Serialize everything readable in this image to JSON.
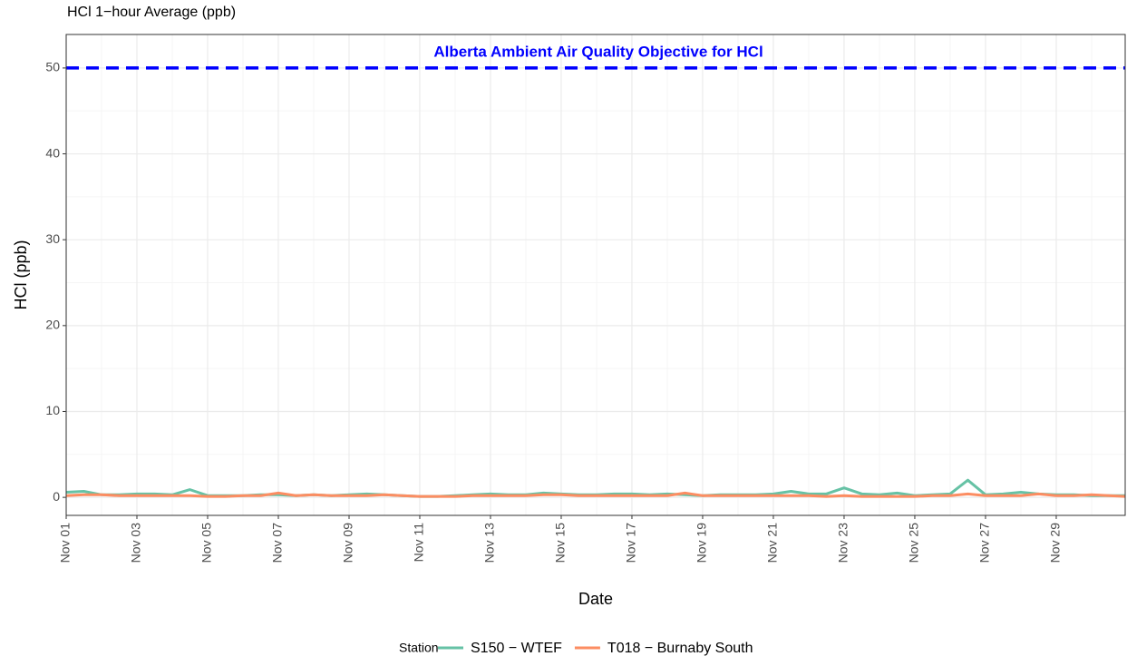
{
  "chart_data": {
    "type": "line",
    "title": "HCl 1−hour Average (ppb)",
    "x_label": "Date",
    "y_label": "HCl (ppb)",
    "legend_title": "Station",
    "legend_position": "bottom",
    "grid": true,
    "xlim": [
      1,
      30.95
    ],
    "ylim": [
      -2.1,
      53.9
    ],
    "xticks": [
      {
        "value": 1,
        "label": "Nov 01"
      },
      {
        "value": 3,
        "label": "Nov 03"
      },
      {
        "value": 5,
        "label": "Nov 05"
      },
      {
        "value": 7,
        "label": "Nov 07"
      },
      {
        "value": 9,
        "label": "Nov 09"
      },
      {
        "value": 11,
        "label": "Nov 11"
      },
      {
        "value": 13,
        "label": "Nov 13"
      },
      {
        "value": 15,
        "label": "Nov 15"
      },
      {
        "value": 17,
        "label": "Nov 17"
      },
      {
        "value": 19,
        "label": "Nov 19"
      },
      {
        "value": 21,
        "label": "Nov 21"
      },
      {
        "value": 23,
        "label": "Nov 23"
      },
      {
        "value": 25,
        "label": "Nov 25"
      },
      {
        "value": 27,
        "label": "Nov 27"
      },
      {
        "value": 29,
        "label": "Nov 29"
      }
    ],
    "yticks": [
      0,
      10,
      20,
      30,
      40,
      50
    ],
    "reference_line": {
      "value": 50,
      "label": "Alberta Ambient Air Quality Objective for HCl",
      "color": "#0000ff"
    },
    "x": [
      1,
      1.5,
      2,
      2.5,
      3,
      3.5,
      4,
      4.5,
      5,
      5.5,
      6,
      6.5,
      7,
      7.5,
      8,
      8.5,
      9,
      9.5,
      10,
      10.5,
      11,
      11.5,
      12,
      12.5,
      13,
      13.5,
      14,
      14.5,
      15,
      15.5,
      16,
      16.5,
      17,
      17.5,
      18,
      18.5,
      19,
      19.5,
      20,
      20.5,
      21,
      21.5,
      22,
      22.5,
      23,
      23.5,
      24,
      24.5,
      25,
      25.5,
      26,
      26.5,
      27,
      27.5,
      28,
      28.5,
      29,
      29.5,
      30,
      30.5,
      30.95
    ],
    "series": [
      {
        "name": "S150 − WTEF",
        "color": "#66c2a5",
        "values": [
          0.6,
          0.7,
          0.3,
          0.3,
          0.4,
          0.4,
          0.3,
          0.9,
          0.2,
          0.2,
          0.2,
          0.3,
          0.3,
          0.2,
          0.3,
          0.2,
          0.3,
          0.4,
          0.3,
          0.2,
          0.1,
          0.1,
          0.2,
          0.3,
          0.4,
          0.3,
          0.3,
          0.5,
          0.4,
          0.3,
          0.3,
          0.4,
          0.4,
          0.3,
          0.4,
          0.3,
          0.2,
          0.3,
          0.3,
          0.3,
          0.4,
          0.7,
          0.4,
          0.4,
          1.1,
          0.4,
          0.3,
          0.5,
          0.2,
          0.3,
          0.4,
          2.0,
          0.3,
          0.4,
          0.6,
          0.4,
          0.3,
          0.3,
          0.2,
          0.2,
          0.2
        ]
      },
      {
        "name": "T018 − Burnaby South",
        "color": "#fc8d62",
        "values": [
          0.2,
          0.3,
          0.3,
          0.2,
          0.2,
          0.2,
          0.2,
          0.2,
          0.1,
          0.1,
          0.2,
          0.2,
          0.5,
          0.2,
          0.3,
          0.2,
          0.2,
          0.2,
          0.3,
          0.2,
          0.1,
          0.1,
          0.1,
          0.2,
          0.2,
          0.2,
          0.2,
          0.3,
          0.3,
          0.2,
          0.2,
          0.2,
          0.2,
          0.2,
          0.2,
          0.5,
          0.2,
          0.2,
          0.2,
          0.2,
          0.2,
          0.2,
          0.2,
          0.1,
          0.2,
          0.1,
          0.1,
          0.1,
          0.1,
          0.2,
          0.2,
          0.4,
          0.2,
          0.2,
          0.2,
          0.4,
          0.2,
          0.2,
          0.3,
          0.2,
          0.1
        ]
      }
    ]
  }
}
